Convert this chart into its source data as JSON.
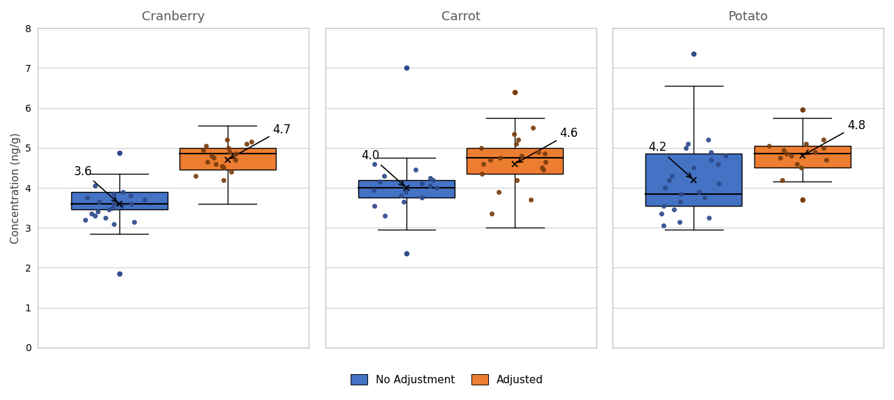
{
  "panels": [
    "Cranberry",
    "Carrot",
    "Potato"
  ],
  "blue_color": "#4472C4",
  "orange_color": "#ED7D31",
  "blue_dot_color": "#2E4B8C",
  "orange_dot_color": "#7B3F0E",
  "ylabel": "Concentration (ng/g)",
  "ylim": [
    0,
    8
  ],
  "yticks": [
    0,
    1,
    2,
    3,
    4,
    5,
    6,
    7,
    8
  ],
  "mean_labels": {
    "Cranberry": {
      "blue": "3.6",
      "orange": "4.7"
    },
    "Carrot": {
      "blue": "4.0",
      "orange": "4.6"
    },
    "Potato": {
      "blue": "4.2",
      "orange": "4.8"
    }
  },
  "cranberry": {
    "blue": {
      "q1": 3.45,
      "median": 3.6,
      "q3": 3.9,
      "whisker_low": 2.85,
      "whisker_high": 4.35,
      "mean": 3.6,
      "outliers": [
        1.85,
        4.88
      ]
    },
    "orange": {
      "q1": 4.45,
      "median": 4.85,
      "q3": 5.0,
      "whisker_low": 3.6,
      "whisker_high": 5.55,
      "mean": 4.7,
      "outliers": []
    }
  },
  "carrot": {
    "blue": {
      "q1": 3.75,
      "median": 4.0,
      "q3": 4.2,
      "whisker_low": 2.95,
      "whisker_high": 4.75,
      "mean": 4.0,
      "outliers": [
        2.35,
        7.0
      ]
    },
    "orange": {
      "q1": 4.35,
      "median": 4.75,
      "q3": 5.0,
      "whisker_low": 3.0,
      "whisker_high": 5.75,
      "mean": 4.6,
      "outliers": [
        6.4
      ]
    }
  },
  "potato": {
    "blue": {
      "q1": 3.55,
      "median": 3.85,
      "q3": 4.85,
      "whisker_low": 2.95,
      "whisker_high": 6.55,
      "mean": 4.2,
      "outliers": [
        7.35
      ]
    },
    "orange": {
      "q1": 4.5,
      "median": 4.85,
      "q3": 5.05,
      "whisker_low": 4.15,
      "whisker_high": 5.75,
      "mean": 4.8,
      "outliers": [
        3.7,
        5.95
      ]
    }
  },
  "cranberry_blue_dots": [
    3.1,
    3.15,
    3.2,
    3.25,
    3.3,
    3.35,
    3.4,
    3.45,
    3.5,
    3.55,
    3.6,
    3.6,
    3.65,
    3.7,
    3.75,
    3.8,
    3.85,
    3.9,
    4.05
  ],
  "cranberry_orange_dots": [
    4.2,
    4.3,
    4.4,
    4.5,
    4.55,
    4.6,
    4.65,
    4.7,
    4.75,
    4.8,
    4.85,
    4.9,
    4.95,
    5.0,
    5.05,
    5.1,
    5.15,
    5.2
  ],
  "carrot_blue_dots": [
    3.3,
    3.55,
    3.65,
    3.75,
    3.8,
    3.9,
    3.95,
    4.0,
    4.0,
    4.05,
    4.1,
    4.15,
    4.2,
    4.25,
    4.3,
    4.45,
    4.6
  ],
  "carrot_orange_dots": [
    3.35,
    3.7,
    3.9,
    4.2,
    4.35,
    4.45,
    4.5,
    4.6,
    4.65,
    4.7,
    4.75,
    4.8,
    4.85,
    4.9,
    5.0,
    5.1,
    5.2,
    5.35,
    5.5
  ],
  "potato_blue_dots": [
    3.05,
    3.15,
    3.25,
    3.35,
    3.45,
    3.55,
    3.65,
    3.75,
    3.85,
    3.9,
    4.0,
    4.1,
    4.2,
    4.3,
    4.5,
    4.6,
    4.7,
    4.8,
    4.9,
    5.0,
    5.1,
    5.2
  ],
  "potato_orange_dots": [
    4.2,
    4.5,
    4.6,
    4.7,
    4.75,
    4.8,
    4.85,
    4.9,
    4.95,
    5.0,
    5.05,
    5.1,
    5.2
  ]
}
